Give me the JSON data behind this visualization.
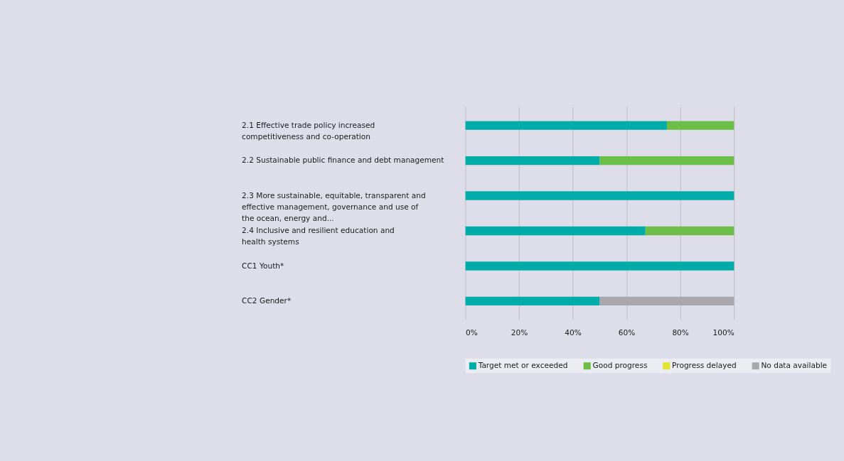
{
  "chart_data": {
    "type": "bar",
    "orientation": "horizontal",
    "stacked": true,
    "categories": [
      "2.1  Effective trade policy increased\ncompetitiveness and co-operation",
      "2.2  Sustainable public finance and debt management",
      "2.3  More sustainable, equitable, transparent and\neffective management, governance and use of\nthe ocean, energy and...",
      "2.4  Inclusive and resilient education and\nhealth systems",
      "CC1 Youth*",
      "CC2 Gender*"
    ],
    "series": [
      {
        "name": "Target met or exceeded",
        "color": "#00aca8",
        "values": [
          75,
          50,
          100,
          67,
          100,
          50
        ]
      },
      {
        "name": "Good progress",
        "color": "#6dbd49",
        "values": [
          25,
          50,
          0,
          33,
          0,
          0
        ]
      },
      {
        "name": "Progress delayed",
        "color": "#e3e334",
        "values": [
          0,
          0,
          0,
          0,
          0,
          0
        ]
      },
      {
        "name": "No data available",
        "color": "#a8a8ac",
        "values": [
          0,
          0,
          0,
          0,
          0,
          50
        ]
      }
    ],
    "xlim": [
      0,
      100
    ],
    "xticks": [
      {
        "value": 0,
        "label": "0%"
      },
      {
        "value": 20,
        "label": "20%"
      },
      {
        "value": 40,
        "label": "40%"
      },
      {
        "value": 60,
        "label": "60%"
      },
      {
        "value": 80,
        "label": "80%"
      },
      {
        "value": 100,
        "label": "100%"
      }
    ],
    "grid": "x",
    "legend": "bottom"
  }
}
